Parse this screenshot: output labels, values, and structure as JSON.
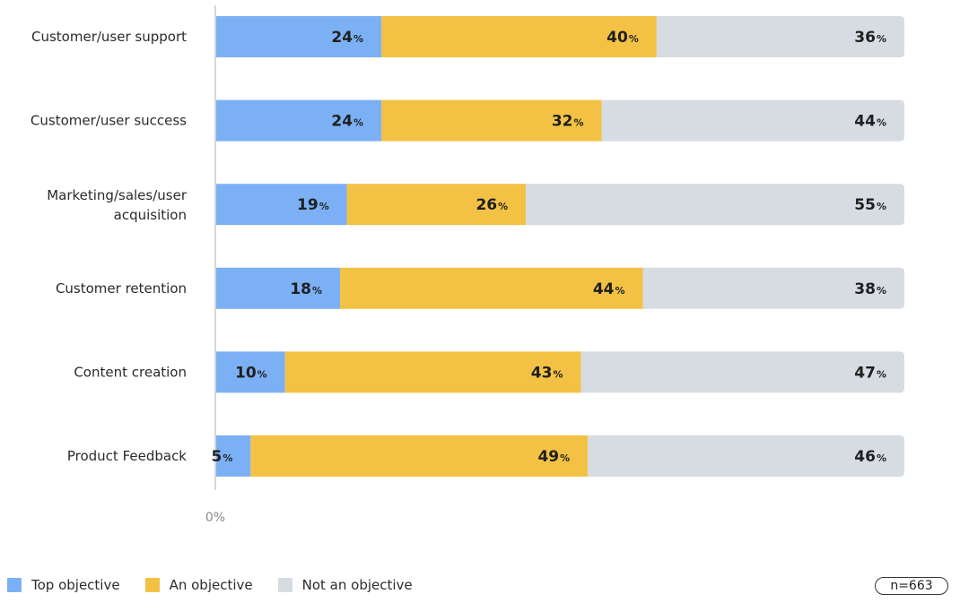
{
  "colors": {
    "top": "#7cb0f5",
    "an": "#f3c245",
    "not": "#d6dce2",
    "axis": "#c8c8c8"
  },
  "chart_data": {
    "type": "bar",
    "orientation": "horizontal",
    "stacked": true,
    "categories": [
      "Customer/user support",
      "Customer/user success",
      "Marketing/sales/user acquisition",
      "Customer retention",
      "Content creation",
      "Product Feedback"
    ],
    "series": [
      {
        "name": "Top objective",
        "key": "top",
        "values": [
          24,
          24,
          19,
          18,
          10,
          5
        ]
      },
      {
        "name": "An objective",
        "key": "an",
        "values": [
          40,
          32,
          26,
          44,
          43,
          49
        ]
      },
      {
        "name": "Not an objective",
        "key": "not",
        "values": [
          36,
          44,
          55,
          38,
          47,
          46
        ]
      }
    ],
    "value_suffix": "%",
    "xlim": [
      0,
      100
    ],
    "x_tick_label": "0%",
    "legend_position": "bottom-left",
    "sample_size": "n=663"
  }
}
